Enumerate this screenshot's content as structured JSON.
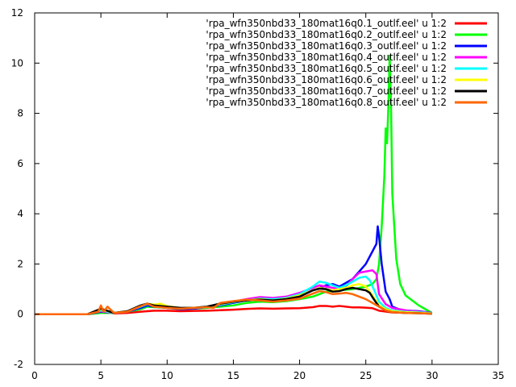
{
  "chart_data": {
    "type": "line",
    "title": "",
    "xlabel": "",
    "ylabel": "",
    "xlim": [
      0,
      35
    ],
    "ylim": [
      -2,
      12
    ],
    "xticks": [
      0,
      5,
      10,
      15,
      20,
      25,
      30,
      35
    ],
    "yticks": [
      -2,
      0,
      2,
      4,
      6,
      8,
      10,
      12
    ],
    "legend_position": "top-right",
    "grid": false,
    "series": [
      {
        "name": "'rpa_wfn350nbd33_180mat16q0.1_outlf.eel' u 1:2",
        "color": "#ff0000",
        "points": [
          [
            0,
            0
          ],
          [
            4,
            0
          ],
          [
            4.8,
            0.05
          ],
          [
            5,
            0.1
          ],
          [
            5.4,
            0.12
          ],
          [
            6,
            0.03
          ],
          [
            7,
            0.05
          ],
          [
            8,
            0.1
          ],
          [
            9,
            0.14
          ],
          [
            10,
            0.14
          ],
          [
            11,
            0.12
          ],
          [
            12,
            0.13
          ],
          [
            13,
            0.14
          ],
          [
            14,
            0.16
          ],
          [
            15,
            0.18
          ],
          [
            16,
            0.21
          ],
          [
            17,
            0.23
          ],
          [
            18,
            0.22
          ],
          [
            19,
            0.23
          ],
          [
            20,
            0.24
          ],
          [
            21,
            0.28
          ],
          [
            21.5,
            0.33
          ],
          [
            22,
            0.33
          ],
          [
            22.5,
            0.3
          ],
          [
            23,
            0.33
          ],
          [
            23.5,
            0.3
          ],
          [
            24,
            0.27
          ],
          [
            24.5,
            0.27
          ],
          [
            25,
            0.26
          ],
          [
            25.5,
            0.24
          ],
          [
            26,
            0.14
          ],
          [
            27,
            0.07
          ],
          [
            28,
            0.06
          ],
          [
            29,
            0.05
          ],
          [
            30,
            0.03
          ]
        ]
      },
      {
        "name": "'rpa_wfn350nbd33_180mat16q0.2_outlf.eel' u 1:2",
        "color": "#00ff00",
        "points": [
          [
            0,
            0
          ],
          [
            4,
            0
          ],
          [
            5,
            0.05
          ],
          [
            6,
            0.05
          ],
          [
            7,
            0.1
          ],
          [
            8,
            0.2
          ],
          [
            8.5,
            0.3
          ],
          [
            9,
            0.28
          ],
          [
            10,
            0.25
          ],
          [
            11,
            0.2
          ],
          [
            12,
            0.22
          ],
          [
            13,
            0.25
          ],
          [
            14,
            0.3
          ],
          [
            15,
            0.35
          ],
          [
            16,
            0.45
          ],
          [
            17,
            0.5
          ],
          [
            18,
            0.48
          ],
          [
            19,
            0.52
          ],
          [
            20,
            0.6
          ],
          [
            21,
            0.7
          ],
          [
            22,
            0.9
          ],
          [
            23,
            0.95
          ],
          [
            24,
            1.0
          ],
          [
            25,
            1.1
          ],
          [
            25.5,
            1.2
          ],
          [
            25.8,
            1.4
          ],
          [
            26,
            2.0
          ],
          [
            26.2,
            3.5
          ],
          [
            26.4,
            5.5
          ],
          [
            26.5,
            7.4
          ],
          [
            26.6,
            6.8
          ],
          [
            26.7,
            8.2
          ],
          [
            26.8,
            10.3
          ],
          [
            26.9,
            8.5
          ],
          [
            27,
            4.8
          ],
          [
            27.3,
            2.2
          ],
          [
            27.6,
            1.2
          ],
          [
            28,
            0.75
          ],
          [
            28.5,
            0.55
          ],
          [
            29,
            0.35
          ],
          [
            29.5,
            0.2
          ],
          [
            30,
            0.05
          ]
        ]
      },
      {
        "name": "'rpa_wfn350nbd33_180mat16q0.3_outlf.eel' u 1:2",
        "color": "#0000ff",
        "points": [
          [
            0,
            0
          ],
          [
            4,
            0
          ],
          [
            5,
            0.1
          ],
          [
            6,
            0.05
          ],
          [
            7,
            0.1
          ],
          [
            8,
            0.25
          ],
          [
            8.5,
            0.35
          ],
          [
            9,
            0.3
          ],
          [
            10,
            0.25
          ],
          [
            11,
            0.2
          ],
          [
            12,
            0.22
          ],
          [
            13,
            0.28
          ],
          [
            14,
            0.35
          ],
          [
            15,
            0.45
          ],
          [
            16,
            0.55
          ],
          [
            17,
            0.6
          ],
          [
            18,
            0.58
          ],
          [
            19,
            0.62
          ],
          [
            20,
            0.75
          ],
          [
            21,
            0.95
          ],
          [
            21.5,
            1.05
          ],
          [
            22,
            1.15
          ],
          [
            22.5,
            1.2
          ],
          [
            23,
            1.1
          ],
          [
            23.5,
            1.25
          ],
          [
            24,
            1.4
          ],
          [
            24.5,
            1.7
          ],
          [
            25,
            2.0
          ],
          [
            25.5,
            2.5
          ],
          [
            25.8,
            2.8
          ],
          [
            25.9,
            3.5
          ],
          [
            26,
            3.1
          ],
          [
            26.2,
            2.0
          ],
          [
            26.5,
            0.9
          ],
          [
            26.8,
            0.6
          ],
          [
            27,
            0.3
          ],
          [
            27.5,
            0.2
          ],
          [
            28,
            0.15
          ],
          [
            29,
            0.12
          ],
          [
            30,
            0.05
          ]
        ]
      },
      {
        "name": "'rpa_wfn350nbd33_180mat16q0.4_outlf.eel' u 1:2",
        "color": "#ff00ff",
        "points": [
          [
            0,
            0
          ],
          [
            4,
            0
          ],
          [
            5,
            0.12
          ],
          [
            6,
            0.05
          ],
          [
            7,
            0.1
          ],
          [
            8,
            0.3
          ],
          [
            8.5,
            0.4
          ],
          [
            9,
            0.35
          ],
          [
            10,
            0.3
          ],
          [
            11,
            0.25
          ],
          [
            12,
            0.25
          ],
          [
            13,
            0.3
          ],
          [
            14,
            0.4
          ],
          [
            15,
            0.5
          ],
          [
            16,
            0.6
          ],
          [
            17,
            0.68
          ],
          [
            18,
            0.65
          ],
          [
            19,
            0.7
          ],
          [
            20,
            0.85
          ],
          [
            21,
            1.05
          ],
          [
            21.5,
            1.15
          ],
          [
            22,
            1.1
          ],
          [
            22.5,
            1.05
          ],
          [
            23,
            1.0
          ],
          [
            23.5,
            1.1
          ],
          [
            24,
            1.4
          ],
          [
            24.5,
            1.65
          ],
          [
            25,
            1.7
          ],
          [
            25.5,
            1.75
          ],
          [
            25.8,
            1.6
          ],
          [
            26,
            0.8
          ],
          [
            26.5,
            0.4
          ],
          [
            27,
            0.25
          ],
          [
            28,
            0.15
          ],
          [
            29,
            0.1
          ],
          [
            30,
            0.05
          ]
        ]
      },
      {
        "name": "'rpa_wfn350nbd33_180mat16q0.5_outlf.eel' u 1:2",
        "color": "#00ffff",
        "points": [
          [
            0,
            0
          ],
          [
            4,
            0
          ],
          [
            5,
            0.15
          ],
          [
            6,
            0.05
          ],
          [
            7,
            0.12
          ],
          [
            8,
            0.3
          ],
          [
            8.5,
            0.4
          ],
          [
            9,
            0.35
          ],
          [
            10,
            0.3
          ],
          [
            11,
            0.25
          ],
          [
            12,
            0.25
          ],
          [
            13,
            0.3
          ],
          [
            14,
            0.38
          ],
          [
            15,
            0.48
          ],
          [
            16,
            0.55
          ],
          [
            17,
            0.62
          ],
          [
            18,
            0.6
          ],
          [
            19,
            0.65
          ],
          [
            20,
            0.8
          ],
          [
            21,
            1.1
          ],
          [
            21.5,
            1.3
          ],
          [
            22,
            1.25
          ],
          [
            22.5,
            1.15
          ],
          [
            23,
            1.05
          ],
          [
            23.5,
            1.15
          ],
          [
            24,
            1.3
          ],
          [
            24.5,
            1.45
          ],
          [
            25,
            1.5
          ],
          [
            25.3,
            1.35
          ],
          [
            25.6,
            1.0
          ],
          [
            26,
            0.5
          ],
          [
            26.5,
            0.25
          ],
          [
            27,
            0.15
          ],
          [
            28,
            0.1
          ],
          [
            29,
            0.08
          ],
          [
            30,
            0.04
          ]
        ]
      },
      {
        "name": "'rpa_wfn350nbd33_180mat16q0.6_outlf.eel' u 1:2",
        "color": "#ffff00",
        "points": [
          [
            0,
            0
          ],
          [
            4,
            0
          ],
          [
            5,
            0.2
          ],
          [
            6,
            0.05
          ],
          [
            7,
            0.12
          ],
          [
            8,
            0.32
          ],
          [
            8.5,
            0.42
          ],
          [
            9,
            0.38
          ],
          [
            9.5,
            0.42
          ],
          [
            10,
            0.32
          ],
          [
            11,
            0.25
          ],
          [
            12,
            0.25
          ],
          [
            13,
            0.3
          ],
          [
            14,
            0.4
          ],
          [
            15,
            0.5
          ],
          [
            16,
            0.55
          ],
          [
            17,
            0.6
          ],
          [
            18,
            0.55
          ],
          [
            19,
            0.62
          ],
          [
            20,
            0.75
          ],
          [
            21,
            0.95
          ],
          [
            21.5,
            1.05
          ],
          [
            22,
            1.0
          ],
          [
            22.5,
            0.95
          ],
          [
            23,
            1.0
          ],
          [
            23.5,
            1.05
          ],
          [
            24,
            1.15
          ],
          [
            24.5,
            1.2
          ],
          [
            25,
            1.1
          ],
          [
            25.5,
            0.75
          ],
          [
            26,
            0.35
          ],
          [
            26.5,
            0.2
          ],
          [
            27,
            0.12
          ],
          [
            28,
            0.08
          ],
          [
            29,
            0.06
          ],
          [
            30,
            0.03
          ]
        ]
      },
      {
        "name": "'rpa_wfn350nbd33_180mat16q0.7_outlf.eel' u 1:2",
        "color": "#000000",
        "points": [
          [
            0,
            0
          ],
          [
            4,
            0
          ],
          [
            5,
            0.22
          ],
          [
            6,
            0.05
          ],
          [
            7,
            0.12
          ],
          [
            8,
            0.35
          ],
          [
            8.5,
            0.42
          ],
          [
            9,
            0.35
          ],
          [
            10,
            0.3
          ],
          [
            11,
            0.25
          ],
          [
            12,
            0.25
          ],
          [
            13,
            0.3
          ],
          [
            14,
            0.42
          ],
          [
            15,
            0.5
          ],
          [
            16,
            0.55
          ],
          [
            17,
            0.58
          ],
          [
            18,
            0.55
          ],
          [
            19,
            0.6
          ],
          [
            20,
            0.7
          ],
          [
            21,
            0.95
          ],
          [
            21.5,
            1.02
          ],
          [
            22,
            1.0
          ],
          [
            22.5,
            0.9
          ],
          [
            23,
            0.92
          ],
          [
            23.5,
            1.0
          ],
          [
            24,
            1.05
          ],
          [
            24.5,
            1.0
          ],
          [
            25,
            0.95
          ],
          [
            25.3,
            0.85
          ],
          [
            25.6,
            0.6
          ],
          [
            26,
            0.3
          ],
          [
            26.5,
            0.15
          ],
          [
            27,
            0.08
          ],
          [
            28,
            0.05
          ],
          [
            29,
            0.04
          ],
          [
            30,
            0.02
          ]
        ]
      },
      {
        "name": "'rpa_wfn350nbd33_180mat16q0.8_outlf.eel' u 1:2",
        "color": "#ff6600",
        "points": [
          [
            0,
            0
          ],
          [
            4,
            0
          ],
          [
            4.8,
            0.1
          ],
          [
            5,
            0.35
          ],
          [
            5.2,
            0.1
          ],
          [
            5.5,
            0.3
          ],
          [
            6,
            0.05
          ],
          [
            7,
            0.1
          ],
          [
            8,
            0.32
          ],
          [
            8.5,
            0.42
          ],
          [
            9,
            0.3
          ],
          [
            10,
            0.25
          ],
          [
            11,
            0.22
          ],
          [
            12,
            0.25
          ],
          [
            13,
            0.28
          ],
          [
            13.5,
            0.25
          ],
          [
            14,
            0.45
          ],
          [
            15,
            0.52
          ],
          [
            16,
            0.58
          ],
          [
            17,
            0.55
          ],
          [
            18,
            0.5
          ],
          [
            19,
            0.55
          ],
          [
            20,
            0.62
          ],
          [
            21,
            0.82
          ],
          [
            21.5,
            0.92
          ],
          [
            22,
            0.88
          ],
          [
            22.5,
            0.8
          ],
          [
            23,
            0.82
          ],
          [
            23.5,
            0.85
          ],
          [
            24,
            0.8
          ],
          [
            24.5,
            0.7
          ],
          [
            25,
            0.6
          ],
          [
            25.5,
            0.45
          ],
          [
            26,
            0.3
          ],
          [
            26.5,
            0.15
          ],
          [
            27,
            0.08
          ],
          [
            28,
            0.05
          ],
          [
            29,
            0.04
          ],
          [
            30,
            0.02
          ]
        ]
      }
    ]
  }
}
